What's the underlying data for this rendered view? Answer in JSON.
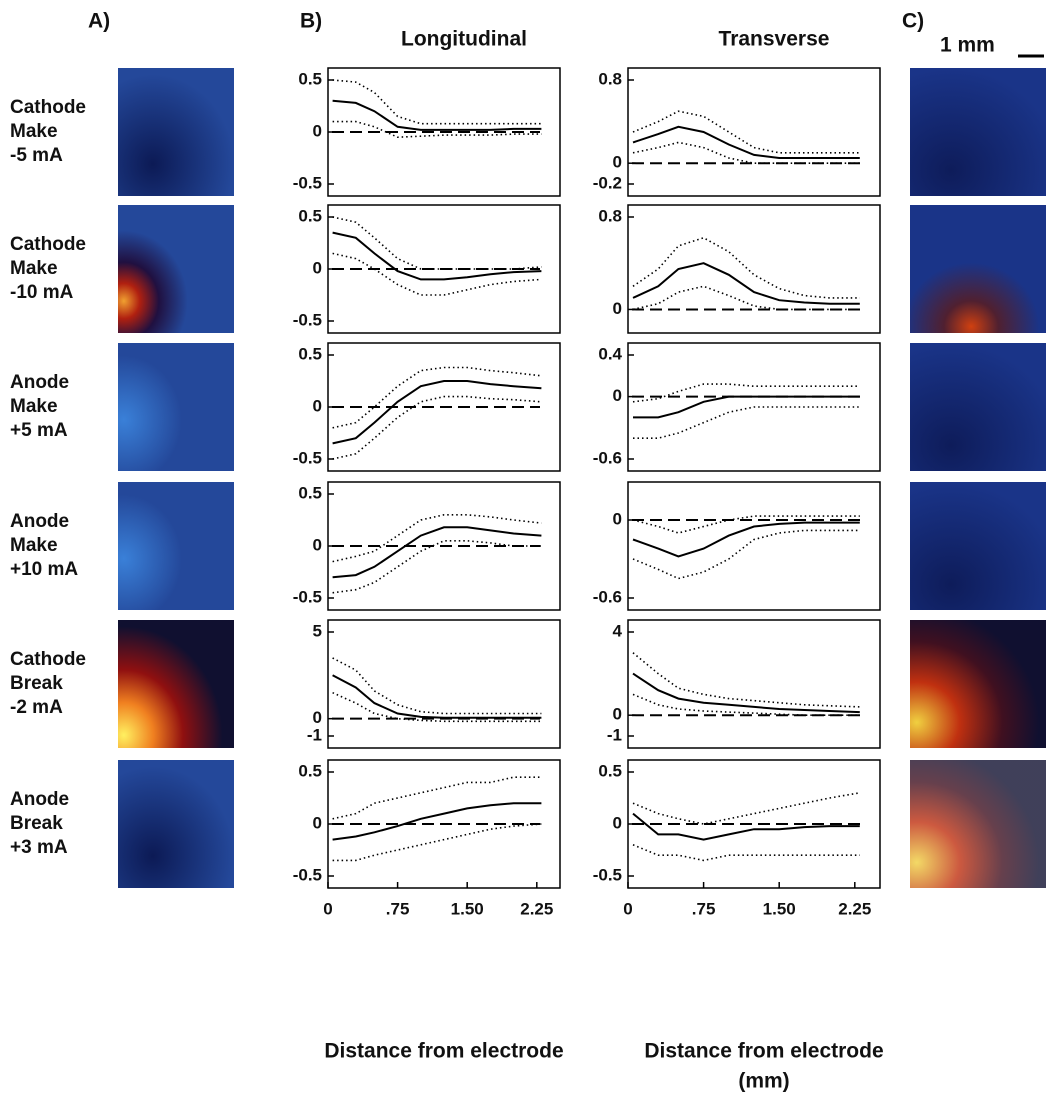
{
  "panel_labels": [
    "A)",
    "B)",
    "C)"
  ],
  "scale_bar": "1 mm",
  "row_labels": [
    [
      "Cathode",
      "Make",
      "-5 mA"
    ],
    [
      "Cathode",
      "Make",
      "-10 mA"
    ],
    [
      "Anode",
      "Make",
      "+5 mA"
    ],
    [
      "Anode",
      "Make",
      "+10 mA"
    ],
    [
      "Cathode",
      "Break",
      "-2 mA"
    ],
    [
      "Anode",
      "Break",
      "+3 mA"
    ]
  ],
  "chart_data": [
    {
      "type": "line",
      "title": "Longitudinal",
      "x": [
        0.05,
        0.3,
        0.5,
        0.75,
        1.0,
        1.25,
        1.5,
        1.75,
        2.0,
        2.3
      ],
      "ylim": [
        -0.5,
        0.5
      ],
      "yticks": [
        -0.5,
        0.0,
        0.5
      ],
      "series": [
        {
          "color": "#000",
          "style": "solid",
          "values": [
            0.3,
            0.28,
            0.2,
            0.05,
            0.02,
            0.02,
            0.02,
            0.02,
            0.03,
            0.03
          ]
        },
        {
          "color": "#000",
          "style": "dotted",
          "values": [
            0.5,
            0.48,
            0.38,
            0.15,
            0.08,
            0.08,
            0.08,
            0.08,
            0.08,
            0.08
          ]
        },
        {
          "color": "#000",
          "style": "dotted",
          "values": [
            0.1,
            0.1,
            0.05,
            -0.05,
            -0.04,
            -0.03,
            -0.03,
            -0.03,
            -0.02,
            -0.02
          ]
        }
      ]
    },
    {
      "type": "line",
      "x": [
        0.05,
        0.3,
        0.5,
        0.75,
        1.0,
        1.25,
        1.5,
        1.75,
        2.0,
        2.3
      ],
      "ylim": [
        -0.5,
        0.5
      ],
      "yticks": [
        -0.5,
        0.0,
        0.5
      ],
      "series": [
        {
          "color": "#000",
          "style": "solid",
          "values": [
            0.35,
            0.3,
            0.15,
            -0.02,
            -0.1,
            -0.1,
            -0.08,
            -0.05,
            -0.03,
            -0.02
          ]
        },
        {
          "color": "#000",
          "style": "dotted",
          "values": [
            0.5,
            0.45,
            0.3,
            0.1,
            0.0,
            0.0,
            0.0,
            0.0,
            0.0,
            0.02
          ]
        },
        {
          "color": "#000",
          "style": "dotted",
          "values": [
            0.15,
            0.1,
            0.0,
            -0.15,
            -0.25,
            -0.25,
            -0.2,
            -0.15,
            -0.12,
            -0.1
          ]
        }
      ]
    },
    {
      "type": "line",
      "x": [
        0.05,
        0.3,
        0.5,
        0.75,
        1.0,
        1.25,
        1.5,
        1.75,
        2.0,
        2.3
      ],
      "ylim": [
        -0.5,
        0.5
      ],
      "yticks": [
        -0.5,
        0.0,
        0.5
      ],
      "series": [
        {
          "color": "#000",
          "style": "solid",
          "values": [
            -0.35,
            -0.3,
            -0.15,
            0.05,
            0.2,
            0.25,
            0.25,
            0.22,
            0.2,
            0.18
          ]
        },
        {
          "color": "#000",
          "style": "dotted",
          "values": [
            -0.2,
            -0.15,
            0.0,
            0.2,
            0.35,
            0.38,
            0.38,
            0.35,
            0.33,
            0.3
          ]
        },
        {
          "color": "#000",
          "style": "dotted",
          "values": [
            -0.5,
            -0.45,
            -0.3,
            -0.1,
            0.05,
            0.1,
            0.1,
            0.08,
            0.07,
            0.05
          ]
        }
      ]
    },
    {
      "type": "line",
      "x": [
        0.05,
        0.3,
        0.5,
        0.75,
        1.0,
        1.25,
        1.5,
        1.75,
        2.0,
        2.3
      ],
      "ylim": [
        -0.5,
        0.5
      ],
      "yticks": [
        -0.5,
        0.0,
        0.5
      ],
      "series": [
        {
          "color": "#000",
          "style": "solid",
          "values": [
            -0.3,
            -0.28,
            -0.2,
            -0.05,
            0.1,
            0.18,
            0.18,
            0.15,
            0.12,
            0.1
          ]
        },
        {
          "color": "#000",
          "style": "dotted",
          "values": [
            -0.15,
            -0.1,
            -0.05,
            0.1,
            0.25,
            0.3,
            0.3,
            0.28,
            0.25,
            0.22
          ]
        },
        {
          "color": "#000",
          "style": "dotted",
          "values": [
            -0.45,
            -0.42,
            -0.35,
            -0.2,
            -0.05,
            0.05,
            0.05,
            0.03,
            0.0,
            0.0
          ]
        }
      ]
    },
    {
      "type": "line",
      "x": [
        0.05,
        0.3,
        0.5,
        0.75,
        1.0,
        1.25,
        1.5,
        1.75,
        2.0,
        2.3
      ],
      "ylim": [
        -1.0,
        5.0
      ],
      "yticks": [
        -1.0,
        0.0,
        5.0
      ],
      "series": [
        {
          "color": "#000",
          "style": "solid",
          "values": [
            2.5,
            1.8,
            0.9,
            0.3,
            0.1,
            0.05,
            0.05,
            0.05,
            0.05,
            0.05
          ]
        },
        {
          "color": "#000",
          "style": "dotted",
          "values": [
            3.5,
            2.8,
            1.6,
            0.8,
            0.4,
            0.3,
            0.3,
            0.3,
            0.3,
            0.3
          ]
        },
        {
          "color": "#000",
          "style": "dotted",
          "values": [
            1.5,
            0.9,
            0.3,
            0.0,
            -0.1,
            -0.15,
            -0.15,
            -0.15,
            -0.15,
            -0.15
          ]
        }
      ]
    },
    {
      "type": "line",
      "x": [
        0.05,
        0.3,
        0.5,
        0.75,
        1.0,
        1.25,
        1.5,
        1.75,
        2.0,
        2.3
      ],
      "ylim": [
        -0.5,
        0.5
      ],
      "yticks": [
        -0.5,
        0.0,
        0.5
      ],
      "xlim": [
        0,
        2.5
      ],
      "xticks": [
        0,
        {
          "value": 0.75,
          "label": ".75"
        },
        {
          "value": 1.5,
          "label": "1.50"
        },
        2.25
      ],
      "xlabel": "Distance from electrode",
      "series": [
        {
          "color": "#000",
          "style": "solid",
          "values": [
            -0.15,
            -0.12,
            -0.08,
            -0.02,
            0.05,
            0.1,
            0.15,
            0.18,
            0.2,
            0.2
          ]
        },
        {
          "color": "#000",
          "style": "dotted",
          "values": [
            0.05,
            0.1,
            0.2,
            0.25,
            0.3,
            0.35,
            0.4,
            0.4,
            0.45,
            0.45
          ]
        },
        {
          "color": "#000",
          "style": "dotted",
          "values": [
            -0.35,
            -0.35,
            -0.3,
            -0.25,
            -0.2,
            -0.15,
            -0.1,
            -0.05,
            -0.02,
            0.0
          ]
        }
      ]
    },
    {
      "type": "line",
      "title": "Transverse",
      "x": [
        0.05,
        0.3,
        0.5,
        0.75,
        1.0,
        1.25,
        1.5,
        1.75,
        2.0,
        2.3
      ],
      "ylim": [
        -0.2,
        0.8
      ],
      "yticks": [
        -0.2,
        0.0,
        0.8
      ],
      "series": [
        {
          "color": "#000",
          "style": "solid",
          "values": [
            0.2,
            0.28,
            0.35,
            0.3,
            0.18,
            0.08,
            0.05,
            0.05,
            0.05,
            0.05
          ]
        },
        {
          "color": "#000",
          "style": "dotted",
          "values": [
            0.3,
            0.4,
            0.5,
            0.45,
            0.3,
            0.15,
            0.1,
            0.1,
            0.1,
            0.1
          ]
        },
        {
          "color": "#000",
          "style": "dotted",
          "values": [
            0.1,
            0.15,
            0.2,
            0.15,
            0.05,
            0.0,
            0.0,
            0.0,
            0.0,
            0.0
          ]
        }
      ]
    },
    {
      "type": "line",
      "x": [
        0.05,
        0.3,
        0.5,
        0.75,
        1.0,
        1.25,
        1.5,
        1.75,
        2.0,
        2.3
      ],
      "ylim": [
        -0.1,
        0.8
      ],
      "yticks": [
        0.0,
        0.8
      ],
      "series": [
        {
          "color": "#000",
          "style": "solid",
          "values": [
            0.1,
            0.2,
            0.35,
            0.4,
            0.3,
            0.15,
            0.08,
            0.06,
            0.05,
            0.05
          ]
        },
        {
          "color": "#000",
          "style": "dotted",
          "values": [
            0.2,
            0.35,
            0.55,
            0.62,
            0.5,
            0.3,
            0.18,
            0.12,
            0.1,
            0.1
          ]
        },
        {
          "color": "#000",
          "style": "dotted",
          "values": [
            0.0,
            0.05,
            0.15,
            0.2,
            0.12,
            0.03,
            0.0,
            0.0,
            0.0,
            0.0
          ]
        }
      ]
    },
    {
      "type": "line",
      "x": [
        0.05,
        0.3,
        0.5,
        0.75,
        1.0,
        1.25,
        1.5,
        1.75,
        2.0,
        2.3
      ],
      "ylim": [
        -0.6,
        0.4
      ],
      "yticks": [
        -0.6,
        0.0,
        0.4
      ],
      "series": [
        {
          "color": "#000",
          "style": "solid",
          "values": [
            -0.2,
            -0.2,
            -0.15,
            -0.05,
            0.0,
            0.0,
            0.0,
            0.0,
            0.0,
            0.0
          ]
        },
        {
          "color": "#000",
          "style": "dotted",
          "values": [
            -0.05,
            -0.02,
            0.05,
            0.12,
            0.12,
            0.1,
            0.1,
            0.1,
            0.1,
            0.1
          ]
        },
        {
          "color": "#000",
          "style": "dotted",
          "values": [
            -0.4,
            -0.4,
            -0.35,
            -0.25,
            -0.15,
            -0.1,
            -0.1,
            -0.1,
            -0.1,
            -0.1
          ]
        }
      ]
    },
    {
      "type": "line",
      "x": [
        0.05,
        0.3,
        0.5,
        0.75,
        1.0,
        1.25,
        1.5,
        1.75,
        2.0,
        2.3
      ],
      "ylim": [
        -0.6,
        0.2
      ],
      "yticks": [
        -0.6,
        0.0
      ],
      "series": [
        {
          "color": "#000",
          "style": "solid",
          "values": [
            -0.15,
            -0.22,
            -0.28,
            -0.22,
            -0.12,
            -0.05,
            -0.03,
            -0.02,
            -0.02,
            -0.02
          ]
        },
        {
          "color": "#000",
          "style": "dotted",
          "values": [
            0.0,
            -0.05,
            -0.1,
            -0.05,
            0.0,
            0.03,
            0.03,
            0.03,
            0.03,
            0.03
          ]
        },
        {
          "color": "#000",
          "style": "dotted",
          "values": [
            -0.3,
            -0.38,
            -0.45,
            -0.4,
            -0.3,
            -0.15,
            -0.1,
            -0.08,
            -0.08,
            -0.08
          ]
        }
      ]
    },
    {
      "type": "line",
      "x": [
        0.05,
        0.3,
        0.5,
        0.75,
        1.0,
        1.25,
        1.5,
        1.75,
        2.0,
        2.3
      ],
      "ylim": [
        -1.0,
        4.0
      ],
      "yticks": [
        -1.0,
        0.0,
        4.0
      ],
      "series": [
        {
          "color": "#000",
          "style": "solid",
          "values": [
            2.0,
            1.2,
            0.8,
            0.6,
            0.5,
            0.4,
            0.3,
            0.25,
            0.2,
            0.15
          ]
        },
        {
          "color": "#000",
          "style": "dotted",
          "values": [
            3.0,
            2.0,
            1.3,
            1.0,
            0.8,
            0.7,
            0.6,
            0.5,
            0.45,
            0.4
          ]
        },
        {
          "color": "#000",
          "style": "dotted",
          "values": [
            1.0,
            0.5,
            0.3,
            0.2,
            0.15,
            0.1,
            0.05,
            0.0,
            0.0,
            0.0
          ]
        }
      ]
    },
    {
      "type": "line",
      "x": [
        0.05,
        0.3,
        0.5,
        0.75,
        1.0,
        1.25,
        1.5,
        1.75,
        2.0,
        2.3
      ],
      "ylim": [
        -0.5,
        0.5
      ],
      "yticks": [
        -0.5,
        0.0,
        0.5
      ],
      "xlim": [
        0,
        2.5
      ],
      "xticks": [
        0,
        {
          "value": 0.75,
          "label": ".75"
        },
        {
          "value": 1.5,
          "label": "1.50"
        },
        2.25
      ],
      "xlabel": [
        "Distance from electrode",
        "(mm)"
      ],
      "series": [
        {
          "color": "#000",
          "style": "solid",
          "values": [
            0.1,
            -0.1,
            -0.1,
            -0.15,
            -0.1,
            -0.05,
            -0.05,
            -0.03,
            -0.02,
            -0.02
          ]
        },
        {
          "color": "#000",
          "style": "dotted",
          "values": [
            0.2,
            0.1,
            0.05,
            0.0,
            0.05,
            0.1,
            0.15,
            0.2,
            0.25,
            0.3
          ]
        },
        {
          "color": "#000",
          "style": "dotted",
          "values": [
            -0.2,
            -0.3,
            -0.3,
            -0.35,
            -0.3,
            -0.3,
            -0.3,
            -0.3,
            -0.3,
            -0.3
          ]
        }
      ]
    }
  ]
}
